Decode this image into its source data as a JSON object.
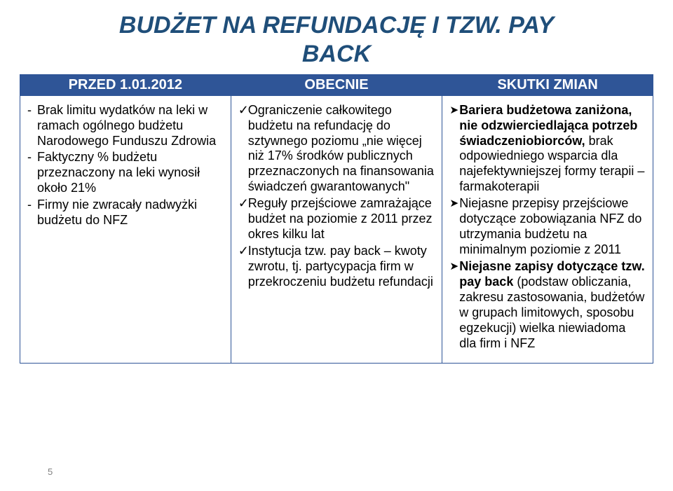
{
  "title": {
    "text_line1": "BUDŻET NA REFUNDACJĘ I TZW. PAY",
    "text_line2": "BACK",
    "color": "#1f4e79",
    "fontsize": 34
  },
  "table": {
    "border_color": "#2f5597",
    "header_bg": "#2f5597",
    "header_fg": "#ffffff",
    "header_fontsize": 20,
    "body_fontsize": 18,
    "body_line_height": 1.22,
    "body_fg": "#000000",
    "col_widths": [
      "33.3%",
      "33.4%",
      "33.3%"
    ],
    "headers": [
      "PRZED 1.01.2012",
      "OBECNIE",
      "SKUTKI ZMIAN"
    ],
    "col1_items": [
      "Brak limitu wydatków na leki w ramach ogólnego budżetu Narodowego Funduszu Zdrowia",
      "Faktyczny % budżetu przeznaczony na leki wynosił około 21%",
      "Firmy nie zwracały nadwyżki budżetu do NFZ"
    ],
    "col2_items": [
      "Ograniczenie całkowitego budżetu na refundację do sztywnego poziomu „nie więcej niż 17% środków publicznych przeznaczonych na finansowania świadczeń gwarantowanych\"",
      "Reguły przejściowe zamrażające budżet na poziomie z 2011 przez okres kilku lat",
      "Instytucja tzw. pay back – kwoty zwrotu, tj. partycypacja firm w przekroczeniu budżetu refundacji"
    ],
    "col3_items": [
      {
        "bold": "Bariera budżetowa zaniżona, nie odzwierciedlająca potrzeb świadczeniobiorców,",
        "rest": " brak odpowiedniego wsparcia dla najefektywniejszej formy terapii – farmakoterapii"
      },
      {
        "bold": "",
        "rest": "Niejasne przepisy przejściowe dotyczące zobowiązania NFZ do utrzymania budżetu na minimalnym poziomie z 2011"
      },
      {
        "bold": "Niejasne zapisy dotyczące tzw. pay back",
        "rest": " (podstaw obliczania, zakresu zastosowania, budżetów w grupach limitowych, sposobu egzekucji) wielka niewiadoma dla firm i NFZ"
      }
    ]
  },
  "page_number": "5",
  "page_number_color": "#808080"
}
